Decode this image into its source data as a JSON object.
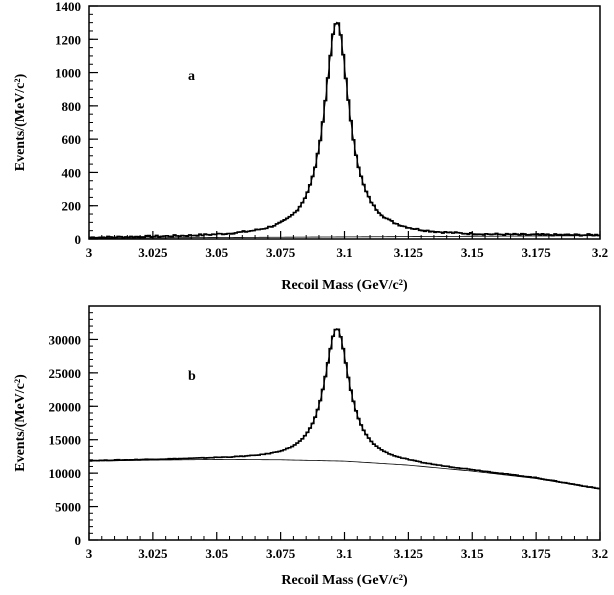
{
  "chart_data": [
    {
      "panel_label": "a",
      "type": "line",
      "xlabel": "Recoil Mass (GeV/c²)",
      "ylabel": "Events/(MeV/c²)",
      "xlim": [
        3.0,
        3.2
      ],
      "ylim": [
        0,
        1400
      ],
      "xticks": [
        3.0,
        3.025,
        3.05,
        3.075,
        3.1,
        3.125,
        3.15,
        3.175,
        3.2
      ],
      "xtick_labels": [
        "3",
        "3.025",
        "3.05",
        "3.075",
        "3.1",
        "3.125",
        "3.15",
        "3.175",
        "3.2"
      ],
      "yticks": [
        0,
        200,
        400,
        600,
        800,
        1000,
        1200,
        1400
      ],
      "ytick_labels": [
        "0",
        "200",
        "400",
        "600",
        "800",
        "1000",
        "1200",
        "1400"
      ],
      "signal": {
        "peak_mass": 3.097,
        "peak_height": 1290,
        "width": 0.0075
      },
      "background": {
        "x": [
          3.0,
          3.2
        ],
        "y": [
          5,
          20
        ]
      },
      "grid": false,
      "legend": "none"
    },
    {
      "panel_label": "b",
      "type": "line",
      "xlabel": "Recoil Mass (GeV/c²)",
      "ylabel": "Events/(MeV/c²)",
      "xlim": [
        3.0,
        3.2
      ],
      "ylim": [
        0,
        35000
      ],
      "xticks": [
        3.0,
        3.025,
        3.05,
        3.075,
        3.1,
        3.125,
        3.15,
        3.175,
        3.2
      ],
      "xtick_labels": [
        "3",
        "3.025",
        "3.05",
        "3.075",
        "3.1",
        "3.125",
        "3.15",
        "3.175",
        "3.2"
      ],
      "yticks": [
        0,
        5000,
        10000,
        15000,
        20000,
        25000,
        30000
      ],
      "ytick_labels": [
        "0",
        "5000",
        "10000",
        "15000",
        "20000",
        "25000",
        "30000"
      ],
      "signal": {
        "peak_mass": 3.097,
        "peak_height": 19800,
        "width": 0.0075
      },
      "background": {
        "x": [
          3.0,
          3.025,
          3.05,
          3.075,
          3.1,
          3.125,
          3.15,
          3.175,
          3.2
        ],
        "y": [
          11800,
          11950,
          12050,
          12000,
          11800,
          11200,
          10300,
          9200,
          7600
        ]
      },
      "grid": false,
      "legend": "none"
    }
  ]
}
